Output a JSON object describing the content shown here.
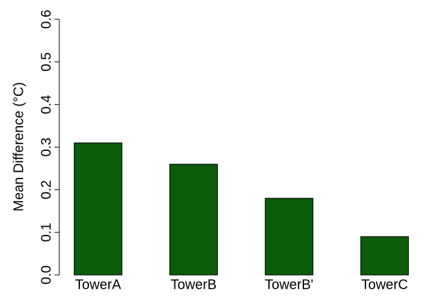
{
  "chart_data": {
    "type": "bar",
    "y_label": "Mean Difference (°C)",
    "categories": [
      "TowerA",
      "TowerB",
      "TowerB'",
      "TowerC"
    ],
    "values": [
      0.31,
      0.26,
      0.18,
      0.09
    ],
    "color": "#0b5c0b",
    "ylim": [
      0,
      0.6
    ],
    "yticks": [
      {
        "value": 0,
        "label": "0.0"
      },
      0.1,
      0.2,
      0.3,
      0.4,
      0.5,
      0.6
    ]
  }
}
